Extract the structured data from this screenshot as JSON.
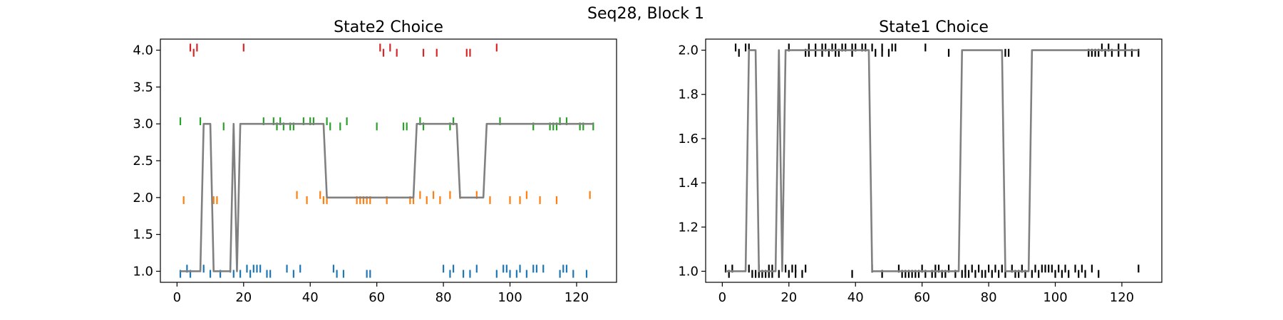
{
  "figure_title": "Seq28, Block 1",
  "chart_data": [
    {
      "type": "line",
      "title": "State2 Choice",
      "xlim": [
        -5,
        132
      ],
      "ylim": [
        0.85,
        4.15
      ],
      "xticks": [
        0,
        20,
        40,
        60,
        80,
        100,
        120
      ],
      "yticks": [
        1.0,
        1.5,
        2.0,
        2.5,
        3.0,
        3.5,
        4.0
      ],
      "ytick_labels": [
        "1.0",
        "1.5",
        "2.0",
        "2.5",
        "3.0",
        "3.5",
        "4.0"
      ],
      "grid": false,
      "line": {
        "color": "#808080",
        "x": [
          1,
          7,
          8,
          9,
          10,
          11,
          12,
          13,
          14,
          15,
          16,
          17,
          18,
          19,
          20,
          21,
          22,
          23,
          24,
          25,
          26,
          27,
          28,
          29,
          30,
          31,
          32,
          33,
          34,
          35,
          36,
          37,
          38,
          39,
          40,
          41,
          42,
          43,
          44,
          45,
          46,
          47,
          48,
          49,
          50,
          51,
          52,
          53,
          54,
          55,
          56,
          57,
          58,
          59,
          60,
          61,
          62,
          63,
          64,
          65,
          66,
          67,
          68,
          69,
          70,
          71,
          72,
          73,
          74,
          75,
          76,
          77,
          78,
          79,
          80,
          81,
          82,
          83,
          84,
          85,
          86,
          87,
          88,
          89,
          90,
          91,
          92,
          93,
          125
        ],
        "y": [
          1,
          1,
          3,
          3,
          3,
          1,
          1,
          1,
          1,
          1,
          1,
          3,
          1,
          3,
          3,
          3,
          3,
          3,
          3,
          3,
          3,
          3,
          3,
          3,
          3,
          3,
          3,
          3,
          3,
          3,
          3,
          3,
          3,
          3,
          3,
          3,
          3,
          3,
          3,
          2,
          2,
          2,
          2,
          2,
          2,
          2,
          2,
          2,
          2,
          2,
          2,
          2,
          2,
          2,
          2,
          2,
          2,
          2,
          2,
          2,
          2,
          2,
          2,
          2,
          2,
          2,
          3,
          3,
          3,
          3,
          3,
          3,
          3,
          3,
          3,
          3,
          3,
          3,
          3,
          2,
          2,
          2,
          2,
          2,
          2,
          2,
          2,
          3,
          3
        ]
      },
      "series": [
        {
          "color": "#1f77b4",
          "y": 1,
          "offset": 0.035,
          "above": [
            3,
            8,
            16,
            21,
            23,
            24,
            25,
            33,
            37,
            47,
            80,
            83,
            90,
            98,
            99,
            103,
            107,
            108,
            110,
            116,
            117
          ],
          "below": [
            1,
            4,
            10,
            13,
            17,
            19,
            22,
            27,
            28,
            35,
            48,
            50,
            57,
            58,
            82,
            86,
            88,
            96,
            100,
            102,
            105,
            115,
            119,
            123
          ]
        },
        {
          "color": "#ff7f0e",
          "y": 2,
          "offset": 0.035,
          "above": [
            36,
            43,
            73,
            77,
            82,
            85,
            90,
            105,
            124
          ],
          "below": [
            2,
            11,
            12,
            39,
            44,
            45,
            54,
            55,
            56,
            57,
            58,
            63,
            70,
            71,
            75,
            79,
            94,
            100,
            103,
            109,
            114
          ]
        },
        {
          "color": "#2ca02c",
          "y": 3,
          "offset": 0.035,
          "above": [
            1,
            7,
            26,
            29,
            31,
            38,
            40,
            41,
            45,
            51,
            73,
            83,
            97,
            115,
            117
          ],
          "below": [
            14,
            30,
            32,
            34,
            35,
            46,
            49,
            60,
            68,
            69,
            74,
            82,
            107,
            112,
            113,
            114,
            121,
            122,
            125
          ]
        },
        {
          "color": "#d62728",
          "y": 4,
          "offset": 0.035,
          "above": [
            4,
            6,
            20,
            61,
            64,
            96
          ],
          "below": [
            5,
            62,
            66,
            74,
            78,
            87,
            88
          ]
        }
      ]
    },
    {
      "type": "line",
      "title": "State1 Choice",
      "xlim": [
        -5,
        132
      ],
      "ylim": [
        0.95,
        2.05
      ],
      "xticks": [
        0,
        20,
        40,
        60,
        80,
        100,
        120
      ],
      "yticks": [
        1.0,
        1.2,
        1.4,
        1.6,
        1.8,
        2.0
      ],
      "ytick_labels": [
        "1.0",
        "1.2",
        "1.4",
        "1.6",
        "1.8",
        "2.0"
      ],
      "grid": false,
      "line": {
        "color": "#808080",
        "x": [
          1,
          7,
          8,
          9,
          10,
          11,
          12,
          13,
          14,
          15,
          16,
          17,
          18,
          19,
          20,
          21,
          22,
          23,
          24,
          25,
          26,
          27,
          28,
          29,
          30,
          31,
          32,
          33,
          34,
          35,
          36,
          37,
          38,
          39,
          40,
          41,
          42,
          43,
          44,
          45,
          46,
          47,
          48,
          49,
          50,
          51,
          52,
          53,
          54,
          55,
          56,
          57,
          58,
          59,
          60,
          61,
          62,
          63,
          64,
          65,
          66,
          67,
          68,
          69,
          70,
          71,
          72,
          73,
          74,
          75,
          76,
          77,
          78,
          79,
          80,
          81,
          82,
          83,
          84,
          85,
          86,
          87,
          88,
          89,
          90,
          91,
          92,
          93,
          125
        ],
        "y": [
          1,
          1,
          2,
          2,
          2,
          1,
          1,
          1,
          1,
          1,
          1,
          2,
          1,
          2,
          2,
          2,
          2,
          2,
          2,
          2,
          2,
          2,
          2,
          2,
          2,
          2,
          2,
          2,
          2,
          2,
          2,
          2,
          2,
          2,
          2,
          2,
          2,
          2,
          2,
          1,
          1,
          1,
          1,
          1,
          1,
          1,
          1,
          1,
          1,
          1,
          1,
          1,
          1,
          1,
          1,
          1,
          1,
          1,
          1,
          1,
          1,
          1,
          1,
          1,
          1,
          1,
          2,
          2,
          2,
          2,
          2,
          2,
          2,
          2,
          2,
          2,
          2,
          2,
          2,
          1,
          1,
          1,
          1,
          1,
          1,
          1,
          1,
          2,
          2
        ]
      },
      "series": [
        {
          "color": "#000000",
          "y": 1,
          "offset": 0.012,
          "above": [
            1,
            3,
            8,
            11,
            14,
            15,
            19,
            21,
            22,
            25,
            45,
            53,
            60,
            64,
            65,
            68,
            73,
            75,
            77,
            80,
            82,
            84,
            87,
            90,
            94,
            96,
            97,
            98,
            99,
            101,
            103,
            106,
            108,
            111,
            125
          ],
          "below": [
            2,
            9,
            10,
            11,
            12,
            13,
            14,
            15,
            17,
            20,
            22,
            24,
            39,
            48,
            54,
            55,
            56,
            57,
            58,
            59,
            61,
            63,
            64,
            66,
            67,
            70,
            72,
            73,
            74,
            76,
            78,
            79,
            81,
            83,
            85,
            88,
            89,
            91,
            93,
            95,
            100,
            102,
            104,
            107,
            109,
            113
          ]
        },
        {
          "color": "#000000",
          "y": 2,
          "offset": 0.012,
          "above": [
            4,
            7,
            8,
            20,
            26,
            28,
            30,
            31,
            33,
            34,
            36,
            37,
            39,
            40,
            42,
            43,
            45,
            48,
            51,
            52,
            61,
            114,
            116,
            119,
            121
          ],
          "below": [
            5,
            25,
            26,
            28,
            30,
            32,
            34,
            35,
            39,
            46,
            48,
            50,
            68,
            85,
            86,
            110,
            111,
            112,
            113,
            115,
            117,
            119,
            121,
            123,
            125
          ]
        }
      ]
    }
  ]
}
